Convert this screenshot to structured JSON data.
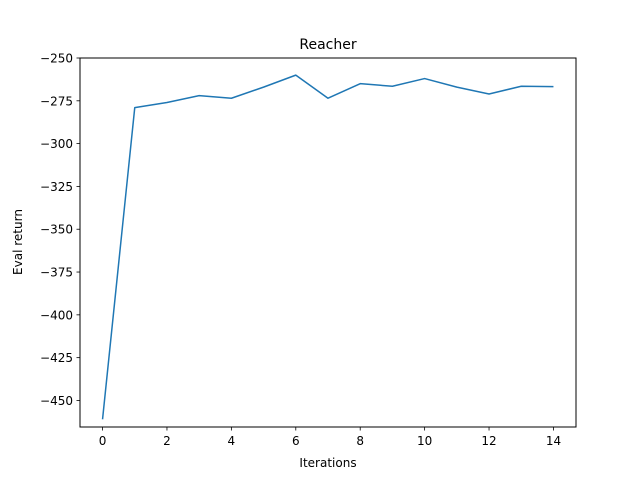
{
  "chart_data": {
    "type": "line",
    "title": "Reacher",
    "xlabel": "Iterations",
    "ylabel": "Eval return",
    "xlim": [
      -0.7,
      14.7
    ],
    "ylim": [
      -465.5,
      -250
    ],
    "xticks": [
      0,
      2,
      4,
      6,
      8,
      10,
      12,
      14
    ],
    "yticks": [
      -250,
      -275,
      -300,
      -325,
      -350,
      -375,
      -400,
      -425,
      -450
    ],
    "xtick_labels": [
      "0",
      "2",
      "4",
      "6",
      "8",
      "10",
      "12",
      "14"
    ],
    "ytick_labels": [
      "−250",
      "−275",
      "−300",
      "−325",
      "−350",
      "−375",
      "−400",
      "−425",
      "−450"
    ],
    "grid": false,
    "series": [
      {
        "color": "#1f77b4",
        "x": [
          0,
          1,
          2,
          3,
          4,
          5,
          6,
          7,
          8,
          9,
          10,
          11,
          12,
          13,
          14
        ],
        "y": [
          -461,
          -279,
          -276,
          -272,
          -273.5,
          -267,
          -260,
          -273.5,
          -265,
          -266.5,
          -262,
          -267,
          -271,
          -266.5,
          -266.7
        ]
      }
    ]
  }
}
